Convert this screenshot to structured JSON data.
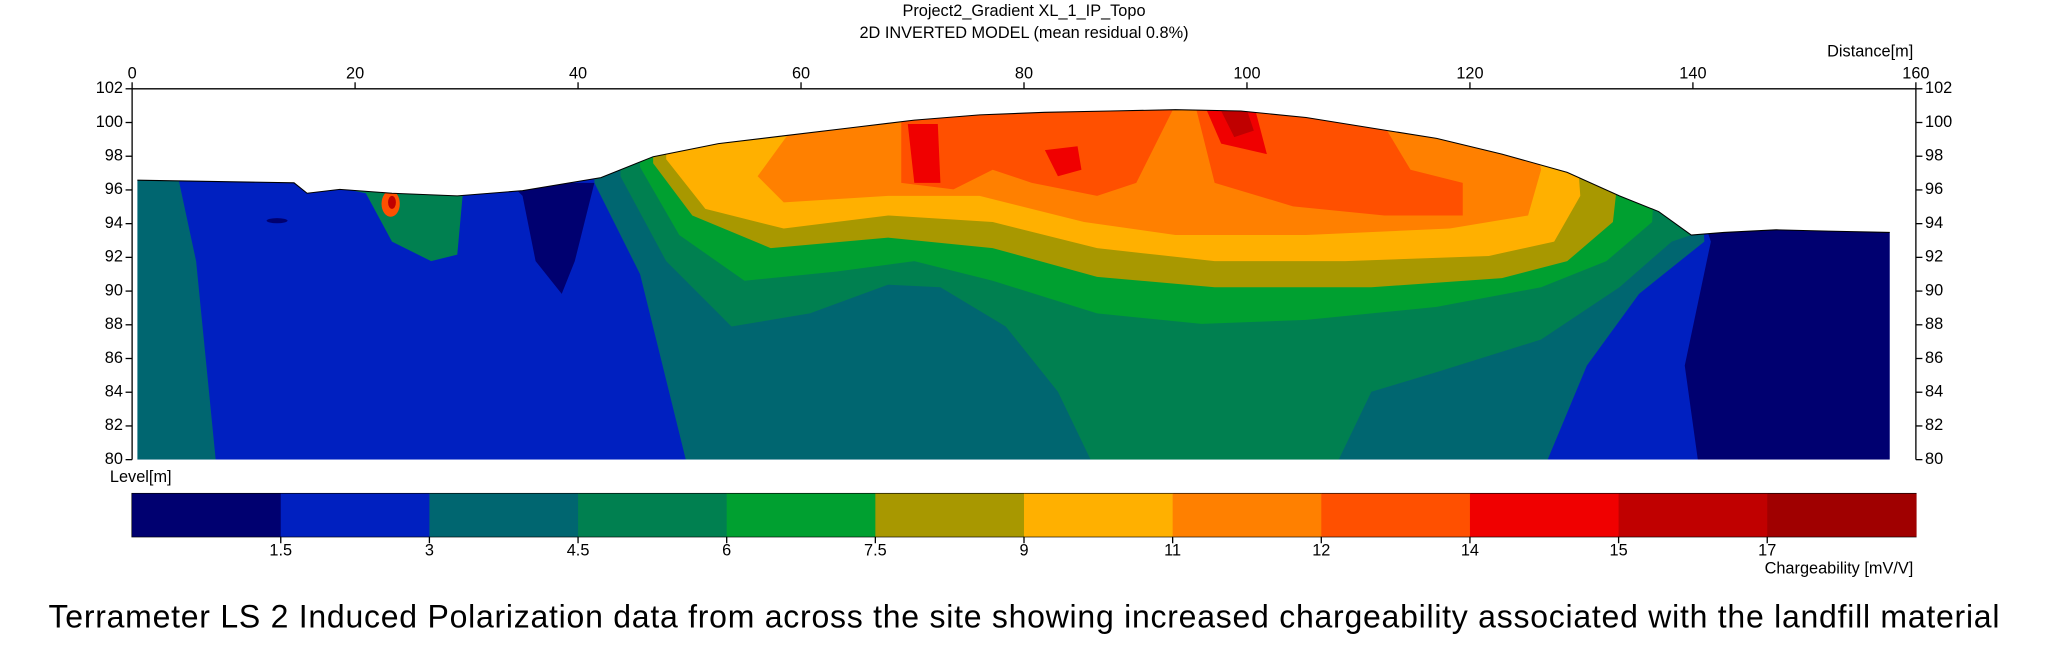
{
  "chart_data": {
    "type": "contour",
    "title": "Project2_Gradient XL_1_IP_Topo",
    "subtitle": "2D INVERTED MODEL (mean residual 0.8%)",
    "x_label": "Distance[m]",
    "y_label": "Level[m]",
    "xlim": [
      0,
      160
    ],
    "xticks": [
      0,
      20,
      40,
      60,
      80,
      100,
      120,
      140,
      160
    ],
    "ylim": [
      80,
      102
    ],
    "yticks": [
      80,
      82,
      84,
      86,
      88,
      90,
      92,
      94,
      96,
      98,
      100,
      102
    ],
    "colorbar": {
      "label": "Chargeability [mV/V]",
      "ticks": [
        1.5,
        3,
        4.5,
        6,
        7.5,
        9,
        11,
        12,
        14,
        15,
        17
      ],
      "colors": [
        "#000070",
        "#0020c0",
        "#006670",
        "#008050",
        "#00a030",
        "#a89800",
        "#ffb000",
        "#ff8000",
        "#ff5000",
        "#f00000",
        "#c00000",
        "#a00000"
      ]
    },
    "caption": "Terrameter LS 2 Induced Polarization data from across the site showing increased chargeability associated with the landfill material"
  }
}
